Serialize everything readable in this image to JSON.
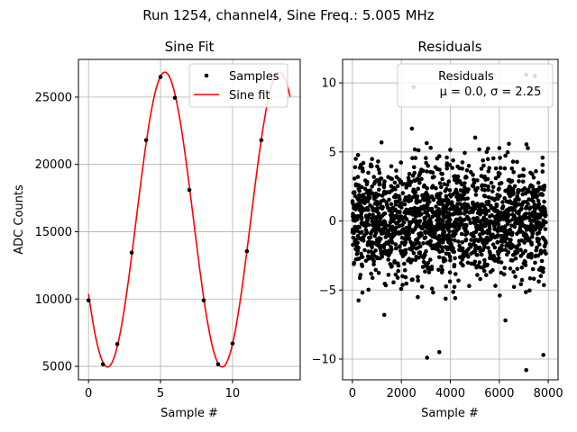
{
  "suptitle": "Run 1254, channel4, Sine Freq.: 5.005 MHz",
  "chart_data": [
    {
      "type": "line",
      "title": "Sine Fit",
      "xlabel": "Sample #",
      "ylabel": "ADC Counts",
      "xlim": [
        -0.7,
        14.7
      ],
      "ylim": [
        4000,
        27800
      ],
      "xticks": [
        0,
        5,
        10
      ],
      "yticks": [
        5000,
        10000,
        15000,
        20000,
        25000
      ],
      "grid": true,
      "legend": {
        "placement": "top-right",
        "entries": [
          "Samples",
          "Sine fit"
        ]
      },
      "series": [
        {
          "name": "Samples",
          "style": "points",
          "color": "#000000",
          "x": [
            0,
            1,
            2,
            3,
            4,
            5,
            6,
            7,
            8,
            9,
            10,
            11,
            12
          ],
          "y": [
            9900,
            5150,
            6650,
            13450,
            21800,
            26500,
            24950,
            18100,
            9900,
            5150,
            6700,
            13550,
            21800
          ]
        },
        {
          "name": "Sine fit",
          "style": "line",
          "color": "#ff0000",
          "model": {
            "offset": 15900,
            "amplitude": 10950,
            "period": 7.96,
            "peak_x": 5.3,
            "x_range": [
              0,
              14
            ]
          }
        }
      ]
    },
    {
      "type": "scatter",
      "title": "Residuals",
      "xlabel": "Sample #",
      "ylabel": "",
      "xlim": [
        -400,
        8400
      ],
      "ylim": [
        -11.5,
        11.7
      ],
      "xticks": [
        0,
        2000,
        4000,
        6000,
        8000
      ],
      "yticks": [
        -10,
        -5,
        0,
        5,
        10
      ],
      "grid": true,
      "legend": {
        "placement": "top-right",
        "entries": [
          "Residuals",
          "μ = 0.0, σ = 2.25"
        ]
      },
      "series": [
        {
          "name": "Residuals",
          "color": "#000000",
          "distribution": {
            "mean": 0.0,
            "sigma": 2.25,
            "n_points": 8000,
            "x_range": [
              0,
              7900
            ]
          },
          "notable_points": [
            {
              "x": 7100,
              "y": 10.6
            },
            {
              "x": 7450,
              "y": 10.5
            },
            {
              "x": 2500,
              "y": 9.7
            },
            {
              "x": 7100,
              "y": -10.8
            },
            {
              "x": 3050,
              "y": -9.9
            },
            {
              "x": 7800,
              "y": -9.7
            },
            {
              "x": 3550,
              "y": -9.5
            },
            {
              "x": 6250,
              "y": -7.2
            },
            {
              "x": 1300,
              "y": -6.8
            }
          ]
        }
      ]
    }
  ]
}
